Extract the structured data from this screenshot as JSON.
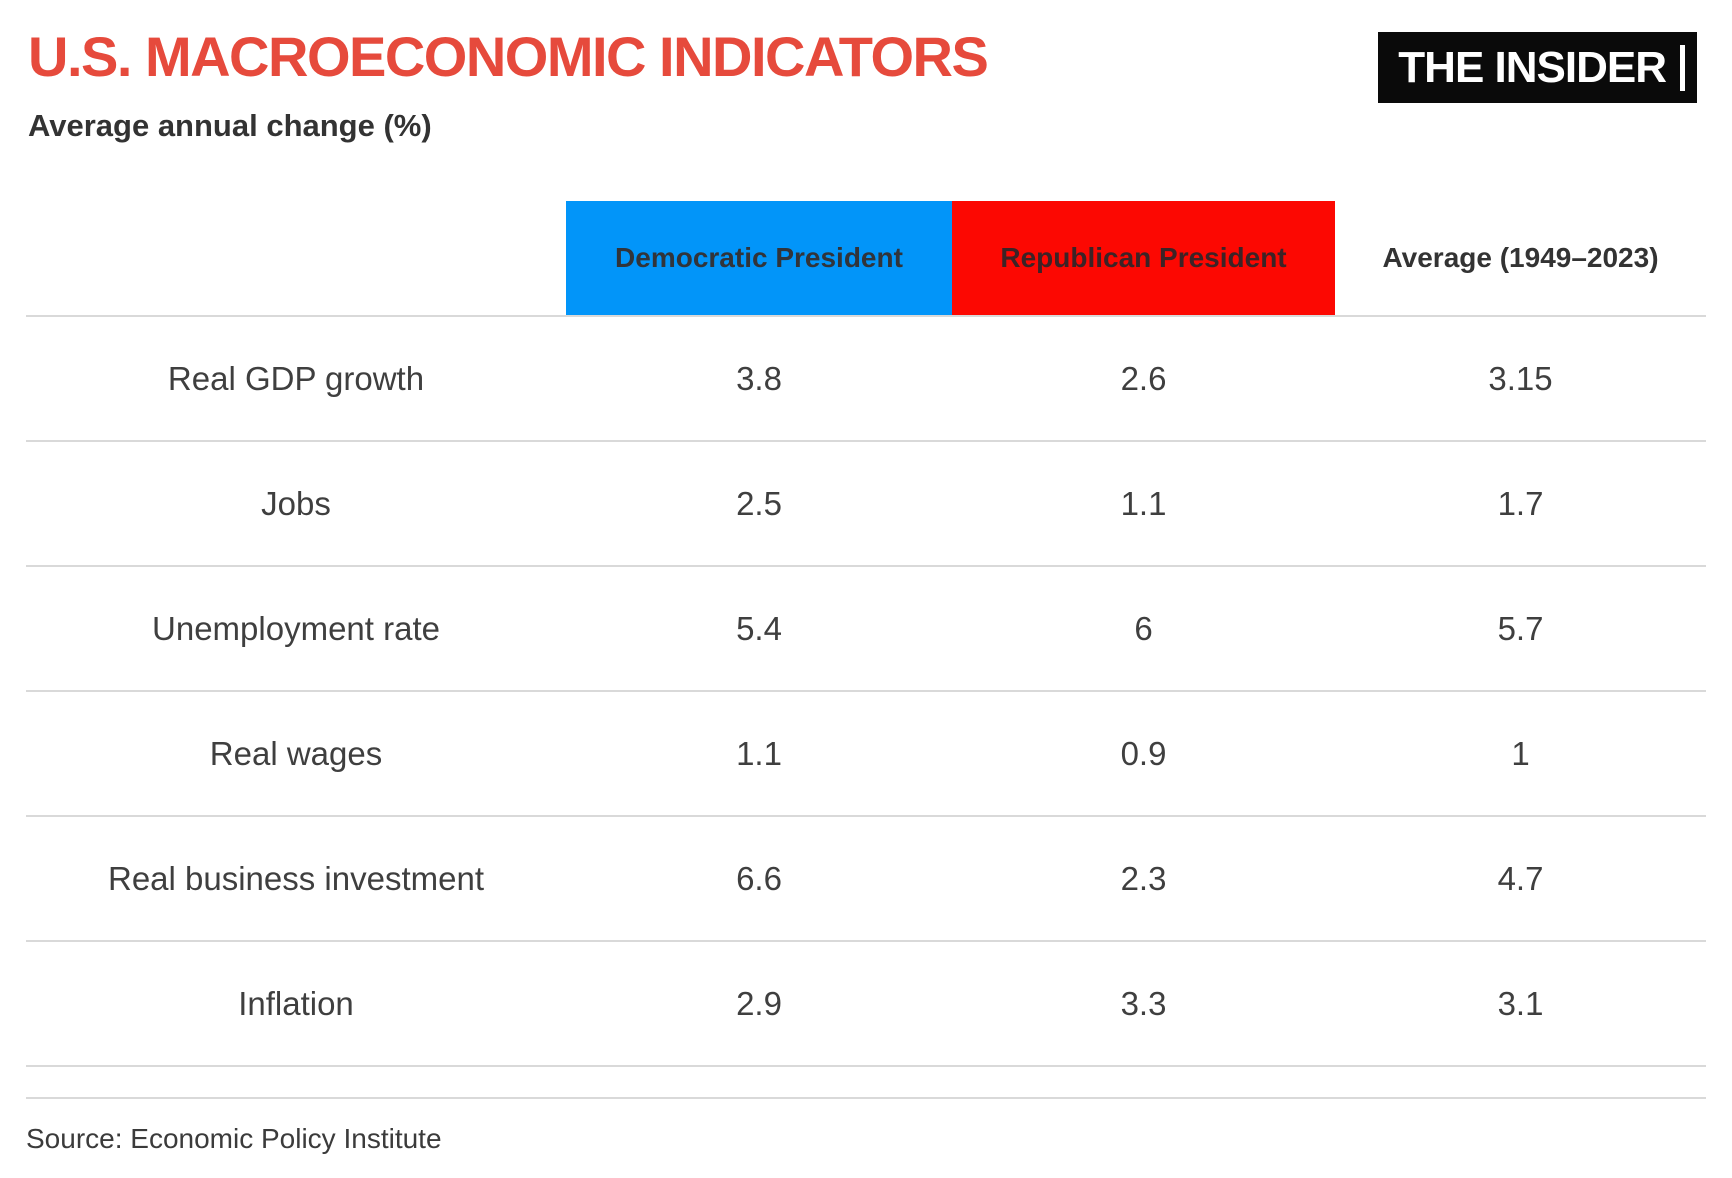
{
  "header": {
    "title": "U.S. MACROECONOMIC INDICATORS",
    "subtitle": "Average annual change (%)",
    "logo": "THE INSIDER"
  },
  "table": {
    "columns": [
      {
        "label": ""
      },
      {
        "label": "Democratic President"
      },
      {
        "label": "Republican President"
      },
      {
        "label": "Average (1949–2023)"
      }
    ],
    "rows": [
      {
        "label": "Real GDP growth",
        "values": [
          "3.8",
          "2.6",
          "3.15"
        ]
      },
      {
        "label": "Jobs",
        "values": [
          "2.5",
          "1.1",
          "1.7"
        ]
      },
      {
        "label": "Unemployment rate",
        "values": [
          "5.4",
          "6",
          "5.7"
        ]
      },
      {
        "label": "Real wages",
        "values": [
          "1.1",
          "0.9",
          "1"
        ]
      },
      {
        "label": "Real business investment",
        "values": [
          "6.6",
          "2.3",
          "4.7"
        ]
      },
      {
        "label": "Inflation",
        "values": [
          "2.9",
          "3.3",
          "3.1"
        ]
      }
    ]
  },
  "footer": {
    "source": "Source: Economic Policy Institute"
  },
  "colors": {
    "title-red": "#e64a3c",
    "democrat-blue": "#0295f9",
    "republican-red": "#fc0802",
    "header-text-dark": "#31343a",
    "header-text-on-red": "#3c2326",
    "body-text": "#3f3f3f",
    "divider": "#d9d9d9",
    "logo-black": "#0a0a0a",
    "logo-text": "#ffffff"
  },
  "chart_data": {
    "type": "table",
    "title": "U.S. MACROECONOMIC INDICATORS",
    "subtitle": "Average annual change (%)",
    "categories": [
      "Real GDP growth",
      "Jobs",
      "Unemployment rate",
      "Real wages",
      "Real business investment",
      "Inflation"
    ],
    "series": [
      {
        "name": "Democratic President",
        "values": [
          3.8,
          2.5,
          5.4,
          1.1,
          6.6,
          2.9
        ]
      },
      {
        "name": "Republican President",
        "values": [
          2.6,
          1.1,
          6.0,
          0.9,
          2.3,
          3.3
        ]
      },
      {
        "name": "Average (1949–2023)",
        "values": [
          3.15,
          1.7,
          5.7,
          1.0,
          4.7,
          3.1
        ]
      }
    ],
    "legend_position": "top",
    "grid": "horizontal-dividers",
    "source": "Source: Economic Policy Institute"
  }
}
